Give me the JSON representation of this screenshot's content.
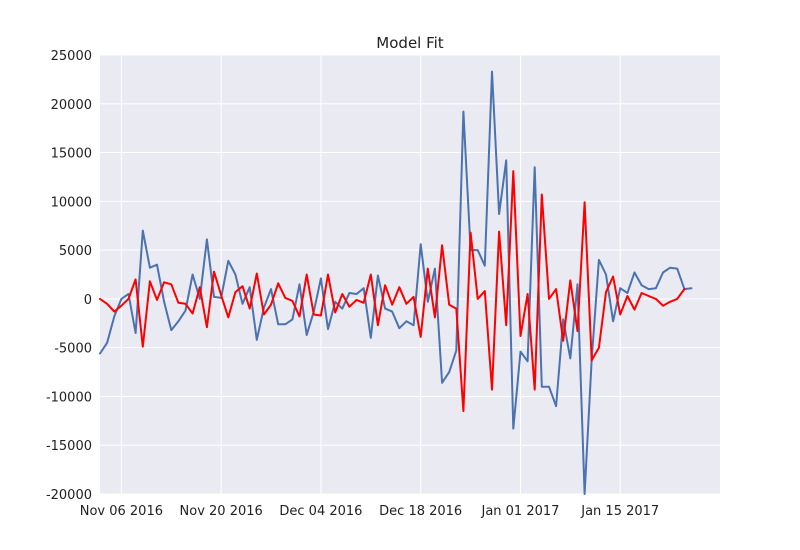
{
  "chart_data": {
    "type": "line",
    "title": "Model Fit",
    "xlabel": "",
    "ylabel": "",
    "x_start": "2016-11-03",
    "x_end": "2017-01-29",
    "x_ticks": [
      {
        "date": "2016-11-06",
        "label": "Nov 06 2016"
      },
      {
        "date": "2016-11-20",
        "label": "Nov 20 2016"
      },
      {
        "date": "2016-12-04",
        "label": "Dec 04 2016"
      },
      {
        "date": "2016-12-18",
        "label": "Dec 18 2016"
      },
      {
        "date": "2017-01-01",
        "label": "Jan 01 2017"
      },
      {
        "date": "2017-01-15",
        "label": "Jan 15 2017"
      }
    ],
    "ylim": [
      -20000,
      25000
    ],
    "y_ticks": [
      -20000,
      -15000,
      -10000,
      -5000,
      0,
      5000,
      10000,
      15000,
      20000,
      25000
    ],
    "grid": true,
    "series": [
      {
        "color": "#4c72b0",
        "values": [
          -5600,
          -4500,
          -1800,
          0,
          500,
          -3500,
          7000,
          3200,
          3500,
          -300,
          -3200,
          -2300,
          -1200,
          2500,
          0,
          6100,
          200,
          100,
          3900,
          2500,
          -500,
          1200,
          -4200,
          -900,
          1000,
          -2600,
          -2600,
          -2100,
          1500,
          -3700,
          -1300,
          2100,
          -3100,
          -300,
          -1000,
          600,
          500,
          1100,
          -4000,
          2400,
          -1000,
          -1300,
          -3000,
          -2300,
          -2700,
          5600,
          -300,
          3100,
          -8600,
          -7500,
          -5300,
          19200,
          5000,
          5000,
          3400,
          23300,
          8700,
          14200,
          -13300,
          -5400,
          -6400,
          13500,
          -9000,
          -9000,
          -11000,
          -2100,
          -6100,
          1500,
          -20000,
          -6200,
          4000,
          2500,
          -2300,
          1100,
          600,
          2700,
          1400,
          1000,
          1100,
          2700,
          3200,
          3100,
          1000,
          1100
        ]
      },
      {
        "color": "#ff0000",
        "values": [
          0,
          -500,
          -1300,
          -700,
          0,
          2000,
          -4900,
          1800,
          -100,
          1700,
          1500,
          -400,
          -500,
          -1500,
          1200,
          -2900,
          2800,
          400,
          -1900,
          700,
          1300,
          -1000,
          2600,
          -1600,
          -600,
          1600,
          100,
          -200,
          -1800,
          2500,
          -1600,
          -1700,
          2500,
          -1400,
          500,
          -800,
          -100,
          -400,
          2500,
          -2700,
          1400,
          -600,
          1200,
          -500,
          200,
          -3900,
          3100,
          -1900,
          5500,
          -600,
          -1000,
          -11500,
          6800,
          0,
          800,
          -9300,
          6900,
          -2700,
          13100,
          -3800,
          500,
          -9300,
          10700,
          0,
          1000,
          -4300,
          1900,
          -3300,
          9900,
          -6300,
          -5000,
          700,
          2300,
          -1600,
          300,
          -1100,
          600,
          300,
          0,
          -700,
          -300,
          0,
          1000
        ]
      }
    ]
  }
}
